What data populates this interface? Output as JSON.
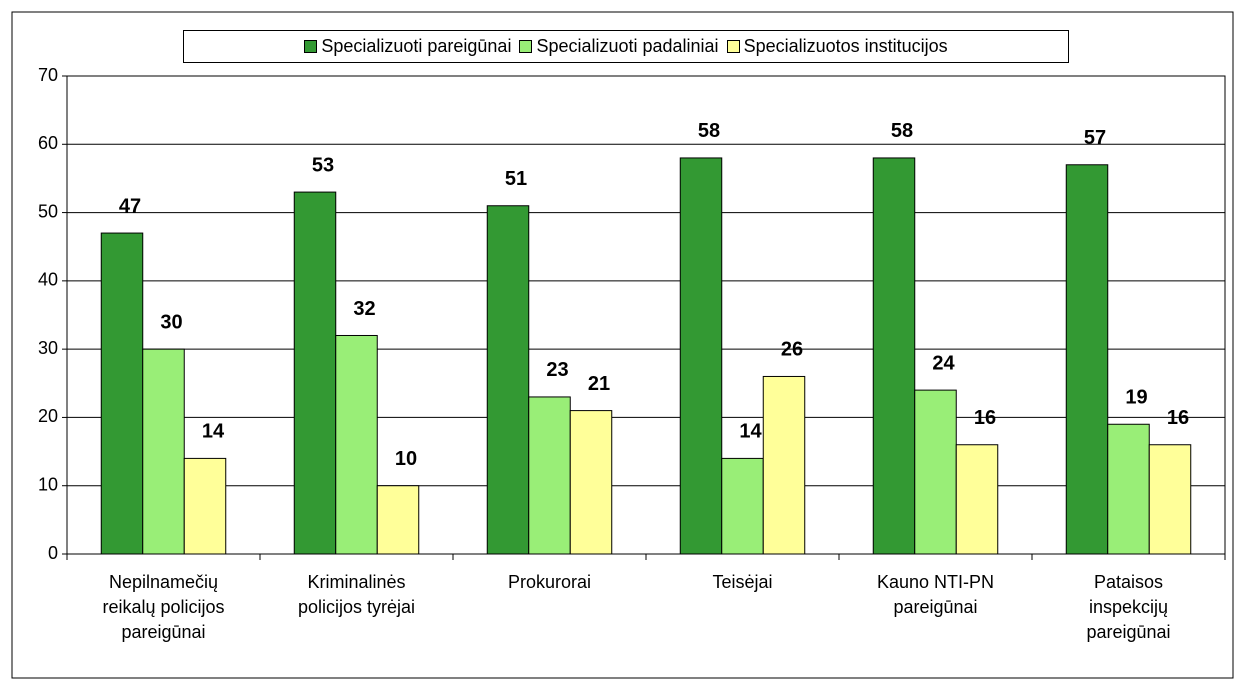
{
  "chart_data": {
    "type": "bar",
    "categories": [
      "Nepilnamečių\nreikalų policijos\npareigūnai",
      "Kriminalinės\npolicijos tyrėjai",
      "Prokurorai",
      "Teisėjai",
      "Kauno NTI-PN\npareigūnai",
      "Pataisos\ninspekcijų\npareigūnai"
    ],
    "series": [
      {
        "name": "Specializuoti pareigūnai",
        "color": "#339933",
        "values": [
          47,
          53,
          51,
          58,
          58,
          57
        ]
      },
      {
        "name": "Specializuoti padaliniai",
        "color": "#99ee77",
        "values": [
          30,
          32,
          23,
          14,
          24,
          19
        ]
      },
      {
        "name": "Specializuotos institucijos",
        "color": "#ffff99",
        "values": [
          14,
          10,
          21,
          26,
          16,
          16
        ]
      }
    ],
    "ylim": [
      0,
      70
    ],
    "yticks": [
      0,
      10,
      20,
      30,
      40,
      50,
      60,
      70
    ],
    "grid": true,
    "legend": "top"
  }
}
